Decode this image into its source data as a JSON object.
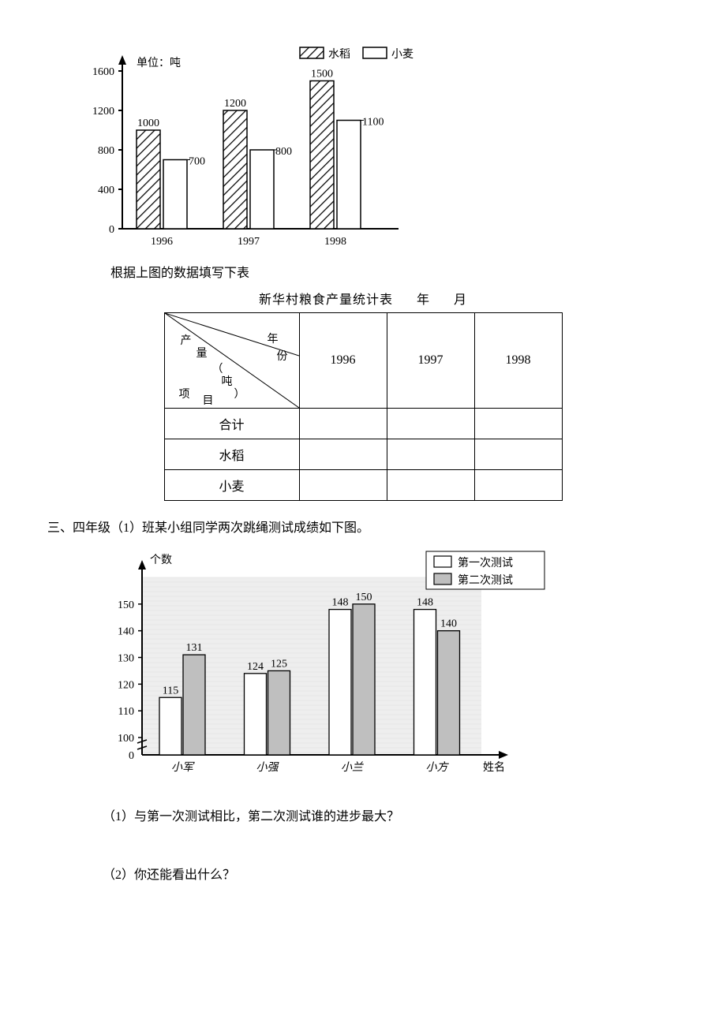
{
  "chart1": {
    "type": "bar",
    "y_axis_label": "单位：吨",
    "legend": {
      "rice": "水稻",
      "wheat": "小麦"
    },
    "categories": [
      "1996",
      "1997",
      "1998"
    ],
    "rice": [
      1000,
      1200,
      1500
    ],
    "wheat": [
      700,
      800,
      1100
    ],
    "ylim": [
      0,
      1600
    ],
    "ytick_step": 400,
    "yticks": [
      "0",
      "400",
      "800",
      "1200",
      "1600"
    ],
    "bar_labels": {
      "rice": [
        "1000",
        "1200",
        "1500"
      ],
      "wheat": [
        "700",
        "800",
        "1100"
      ]
    },
    "rice_fill": "#ffffff",
    "wheat_fill": "#ffffff",
    "stroke": "#000000",
    "axis_stroke": "#000000",
    "label_fontsize": 14
  },
  "caption1": "根据上图的数据填写下表",
  "table1": {
    "title_prefix": "新华村粮食产量统计表",
    "title_suffix_year": "年",
    "title_suffix_month": "月",
    "diag": {
      "top": "年份",
      "mid": "产量（吨）",
      "bot": "项目",
      "top_chars": [
        "年",
        "份"
      ],
      "mid_chars": [
        "产",
        "量",
        "（",
        "吨",
        "）"
      ],
      "bot_chars": [
        "项",
        "目"
      ]
    },
    "col_headers": [
      "1996",
      "1997",
      "1998"
    ],
    "row_headers": [
      "合计",
      "水稻",
      "小麦"
    ],
    "col_widths": {
      "first": 170,
      "data": 110
    },
    "row_heights": {
      "header": 120,
      "data": 38
    },
    "border_color": "#000000",
    "fontsize": 16
  },
  "heading2": "三、四年级（1）班某小组同学两次跳绳测试成绩如下图。",
  "chart2": {
    "type": "bar",
    "y_axis_label": "个数",
    "x_axis_label": "姓名",
    "legend": {
      "first": "第一次测试",
      "second": "第二次测试"
    },
    "categories": [
      "小军",
      "小强",
      "小兰",
      "小方"
    ],
    "first": [
      115,
      124,
      148,
      148
    ],
    "second": [
      131,
      125,
      150,
      140
    ],
    "bar_labels": {
      "first": [
        "115",
        "124",
        "148",
        "148"
      ],
      "second": [
        "131",
        "125",
        "150",
        "140"
      ]
    },
    "ylim": [
      0,
      160
    ],
    "yticks_break": true,
    "yticks": [
      "0",
      "100",
      "110",
      "120",
      "130",
      "140",
      "150"
    ],
    "first_fill": "#ffffff",
    "second_fill": "#bfbfbf",
    "grid_fill": "#eeeeee",
    "stroke": "#000000",
    "label_fontsize": 14
  },
  "q1": "（1）与第一次测试相比，第二次测试谁的进步最大？",
  "q2": "（2）你还能看出什么？"
}
